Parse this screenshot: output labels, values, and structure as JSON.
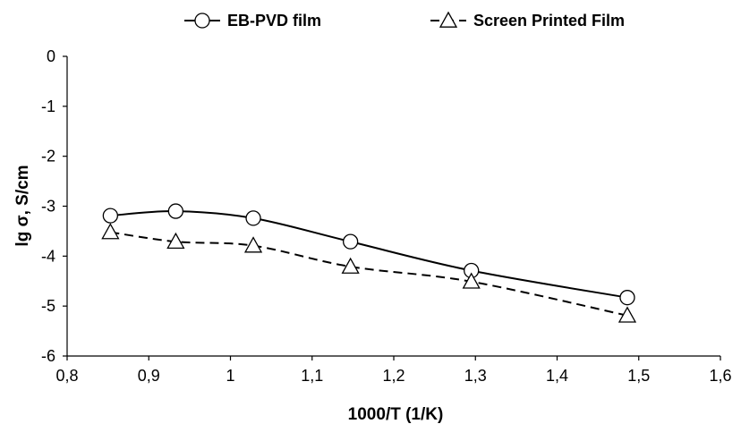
{
  "chart_data": {
    "type": "line",
    "title": "",
    "xlabel": "1000/T (1/K)",
    "ylabel": "lg σ, S/cm",
    "xlim": [
      0.8,
      1.6
    ],
    "ylim": [
      -6,
      0
    ],
    "x_ticks": [
      0.8,
      0.9,
      1.0,
      1.1,
      1.2,
      1.3,
      1.4,
      1.5,
      1.6
    ],
    "x_tick_labels": [
      "0,8",
      "0,9",
      "1",
      "1,1",
      "1,2",
      "1,3",
      "1,4",
      "1,5",
      "1,6"
    ],
    "y_ticks": [
      0,
      -1,
      -2,
      -3,
      -4,
      -5,
      -6
    ],
    "y_tick_labels": [
      "0",
      "-1",
      "-2",
      "-3",
      "-4",
      "-5",
      "-6"
    ],
    "grid": false,
    "legend_position": "top",
    "series": [
      {
        "name": "EB-PVD film",
        "marker": "circle",
        "line_style": "solid",
        "color": "#000000",
        "x": [
          0.853,
          0.933,
          1.028,
          1.147,
          1.295,
          1.486
        ],
        "y": [
          -3.19,
          -3.1,
          -3.24,
          -3.71,
          -4.29,
          -4.83
        ]
      },
      {
        "name": "Screen Printed Film",
        "marker": "triangle",
        "line_style": "dashed",
        "color": "#000000",
        "x": [
          0.853,
          0.933,
          1.028,
          1.147,
          1.295,
          1.486
        ],
        "y": [
          -3.52,
          -3.71,
          -3.79,
          -4.21,
          -4.51,
          -5.19
        ]
      }
    ]
  }
}
